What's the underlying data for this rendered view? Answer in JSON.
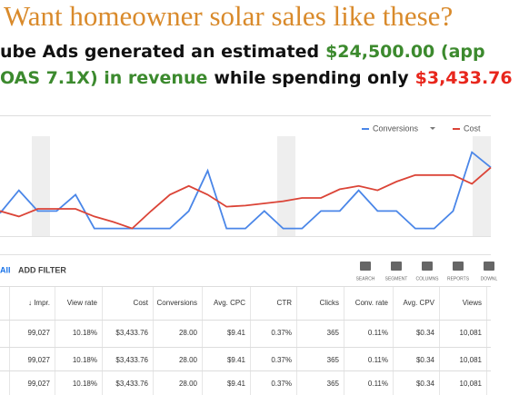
{
  "header": {
    "title": "Want homeowner solar sales like these?",
    "line1": [
      {
        "text": "ube Ads generated an estimated",
        "color": "#111111"
      },
      {
        "text": "$24,500.00 (app",
        "color": "#3c8a2e"
      }
    ],
    "line2": [
      {
        "text": "OAS 7.1X) in revenue",
        "color": "#3c8a2e"
      },
      {
        "text": "while spending only",
        "color": "#111111"
      },
      {
        "text": "$3,433.76",
        "color": "#e8261c"
      }
    ]
  },
  "chart_data": {
    "type": "line",
    "ylim": [
      0,
      100
    ],
    "series": [
      {
        "name": "Conversions",
        "color": "#4a86e8",
        "values": [
          21,
          42,
          23,
          23,
          38,
          7,
          7,
          7,
          7,
          7,
          23,
          60,
          7,
          7,
          23,
          7,
          7,
          23,
          23,
          42,
          23,
          23,
          7,
          7,
          23,
          77,
          63
        ]
      },
      {
        "name": "Cost",
        "color": "#db4437",
        "values": [
          23,
          18,
          25,
          25,
          25,
          18,
          13,
          7,
          23,
          38,
          46,
          38,
          27,
          28,
          30,
          32,
          35,
          35,
          43,
          46,
          42,
          50,
          56,
          56,
          56,
          48,
          63
        ]
      }
    ]
  },
  "toolbar": {
    "filter_prefix": "All",
    "add_filter": "ADD FILTER",
    "tools": [
      "SEARCH",
      "SEGMENT",
      "COLUMNS",
      "REPORTS",
      "DOWNL"
    ]
  },
  "table": {
    "columns": [
      "↓ Impr.",
      "View rate",
      "Cost",
      "Conversions",
      "Avg. CPC",
      "CTR",
      "Clicks",
      "Conv. rate",
      "Avg. CPV",
      "Views"
    ],
    "rows": [
      [
        "99,027",
        "10.18%",
        "$3,433.76",
        "28.00",
        "$9.41",
        "0.37%",
        "365",
        "0.11%",
        "$0.34",
        "10,081"
      ],
      [
        "99,027",
        "10.18%",
        "$3,433.76",
        "28.00",
        "$9.41",
        "0.37%",
        "365",
        "0.11%",
        "$0.34",
        "10,081"
      ],
      [
        "99,027",
        "10.18%",
        "$3,433.76",
        "28.00",
        "$9.41",
        "0.37%",
        "365",
        "0.11%",
        "$0.34",
        "10,081"
      ]
    ]
  }
}
